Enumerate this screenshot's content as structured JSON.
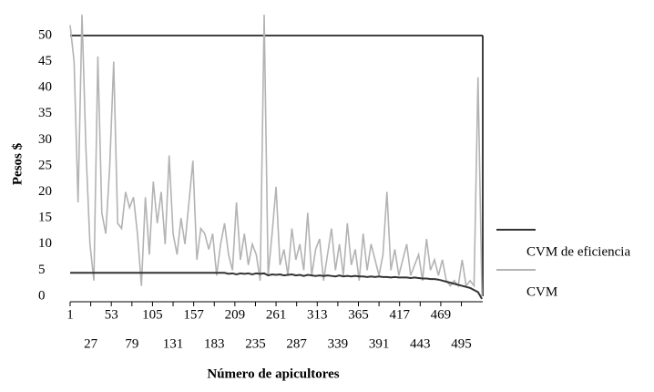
{
  "chart_data": {
    "type": "line",
    "y_label": "Pesos $",
    "x_label": "Número de apicultores",
    "x": [
      1,
      6,
      11,
      16,
      21,
      26,
      31,
      36,
      41,
      46,
      51,
      56,
      61,
      66,
      71,
      76,
      81,
      86,
      91,
      96,
      101,
      106,
      111,
      116,
      121,
      126,
      131,
      136,
      141,
      146,
      151,
      156,
      161,
      166,
      171,
      176,
      181,
      186,
      191,
      196,
      201,
      206,
      211,
      216,
      221,
      226,
      231,
      236,
      241,
      246,
      251,
      256,
      261,
      266,
      271,
      276,
      281,
      286,
      291,
      296,
      301,
      306,
      311,
      316,
      321,
      326,
      331,
      336,
      341,
      346,
      351,
      356,
      361,
      366,
      371,
      376,
      381,
      386,
      391,
      396,
      401,
      406,
      411,
      416,
      421,
      426,
      431,
      436,
      441,
      446,
      451,
      456,
      461,
      466,
      471,
      476,
      481,
      486,
      491,
      496,
      501,
      506,
      511,
      516,
      521
    ],
    "series": [
      {
        "name": "CVM de eficiencia",
        "color": "#333333",
        "values": [
          4.5,
          4.5,
          4.5,
          4.5,
          4.5,
          4.5,
          4.5,
          4.5,
          4.5,
          4.5,
          4.5,
          4.5,
          4.5,
          4.5,
          4.5,
          4.5,
          4.5,
          4.5,
          4.5,
          4.5,
          4.5,
          4.5,
          4.5,
          4.5,
          4.5,
          4.5,
          4.5,
          4.5,
          4.5,
          4.5,
          4.5,
          4.5,
          4.5,
          4.5,
          4.5,
          4.5,
          4.5,
          4.5,
          4.5,
          4.5,
          4.3,
          4.4,
          4.2,
          4.4,
          4.3,
          4.4,
          4.2,
          4.4,
          4.3,
          4.4,
          4.0,
          4.2,
          4.1,
          4.2,
          4.0,
          4.1,
          4.2,
          4.0,
          4.1,
          3.9,
          4.1,
          4.0,
          3.9,
          4.0,
          3.9,
          4.0,
          3.9,
          3.8,
          4.0,
          3.8,
          3.9,
          3.8,
          3.9,
          3.8,
          3.8,
          3.7,
          3.8,
          3.7,
          3.8,
          3.7,
          3.7,
          3.6,
          3.7,
          3.6,
          3.6,
          3.6,
          3.5,
          3.6,
          3.5,
          3.4,
          3.4,
          3.3,
          3.3,
          3.2,
          3.0,
          2.8,
          2.6,
          2.4,
          2.2,
          2.0,
          1.8,
          1.6,
          1.2,
          0.8,
          -0.5
        ]
      },
      {
        "name": "CVM",
        "color": "#b3b3b3",
        "values": [
          52,
          45,
          18,
          54,
          28,
          10,
          3,
          46,
          16,
          12,
          25,
          45,
          14,
          13,
          20,
          17,
          19,
          12,
          2,
          19,
          8,
          22,
          14,
          20,
          10,
          27,
          12,
          8,
          15,
          10,
          18,
          26,
          7,
          13,
          12,
          9,
          12,
          4,
          10,
          14,
          8,
          5,
          18,
          7,
          12,
          6,
          10,
          8,
          3,
          54,
          4,
          12,
          21,
          6,
          9,
          4,
          13,
          7,
          10,
          5,
          16,
          4,
          9,
          11,
          3,
          8,
          13,
          5,
          10,
          4,
          14,
          6,
          9,
          3,
          12,
          5,
          10,
          7,
          4,
          8,
          20,
          5,
          9,
          4,
          7,
          10,
          4,
          6,
          8,
          3,
          11,
          5,
          7,
          4,
          7,
          3,
          2,
          3,
          2,
          7,
          2,
          3,
          2,
          42,
          0
        ]
      }
    ],
    "xlim": [
      1,
      522
    ],
    "ylim": [
      0,
      50
    ],
    "xticks": [
      1,
      27,
      53,
      79,
      105,
      131,
      157,
      183,
      209,
      235,
      261,
      287,
      313,
      339,
      365,
      391,
      417,
      443,
      469,
      495
    ],
    "yticks": [
      0,
      5,
      10,
      15,
      20,
      25,
      30,
      35,
      40,
      45,
      50
    ]
  }
}
